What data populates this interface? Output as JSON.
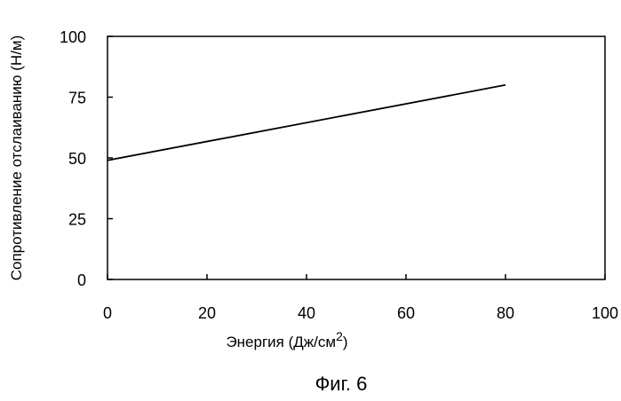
{
  "chart_data": {
    "type": "line",
    "xlabel": "Энергия (Дж/см",
    "xlabel_sup": "2",
    "xlabel_close": ")",
    "ylabel": "Сопротивление отслаиванию (Н/м)",
    "xlim": [
      0,
      100
    ],
    "ylim": [
      0,
      100
    ],
    "xticks": [
      0,
      20,
      40,
      60,
      80,
      100
    ],
    "yticks": [
      0,
      25,
      50,
      75,
      100
    ],
    "x_tick_labels": [
      "0",
      "20",
      "40",
      "60",
      "80",
      "100"
    ],
    "y_tick_labels": [
      "0",
      "25",
      "50",
      "75",
      "100"
    ],
    "grid": false,
    "series": [
      {
        "x": [
          0,
          80
        ],
        "y": [
          49,
          80
        ]
      }
    ]
  },
  "caption": "Фиг. 6"
}
